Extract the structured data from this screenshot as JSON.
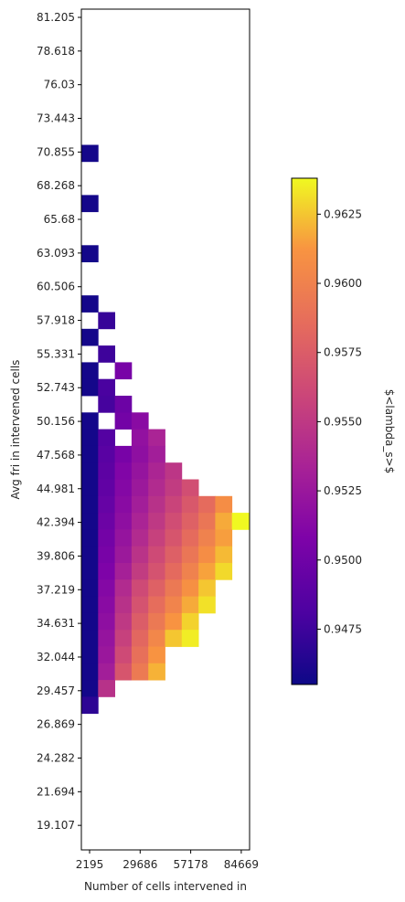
{
  "chart_data": {
    "type": "heatmap",
    "title": "",
    "xlabel": "Number of cells intervened in",
    "ylabel": "Avg fri in intervened cells",
    "colorbar_label": "$<lambda_s>$",
    "colormap": "plasma",
    "x_tick_labels": [
      "2195",
      "29686",
      "57178",
      "84669"
    ],
    "y_tick_labels": [
      "81.205",
      "78.618",
      "76.03",
      "73.443",
      "70.855",
      "68.268",
      "65.68",
      "63.093",
      "60.506",
      "57.918",
      "55.331",
      "52.743",
      "50.156",
      "47.568",
      "44.981",
      "42.394",
      "39.806",
      "37.219",
      "34.631",
      "32.044",
      "29.457",
      "26.869",
      "24.282",
      "21.694",
      "19.107"
    ],
    "colorbar_ticks": [
      "0.9475",
      "0.9500",
      "0.9525",
      "0.9550",
      "0.9575",
      "0.9600",
      "0.9625"
    ],
    "color_range": [
      0.9455,
      0.9638
    ],
    "grid": false,
    "n_cols": 10,
    "n_rows": 43,
    "cells": [
      [
        0,
        4,
        0.9458
      ],
      [
        0,
        7,
        0.9458
      ],
      [
        0,
        10,
        0.9458
      ],
      [
        0,
        13,
        0.9458
      ],
      [
        1,
        14,
        0.9472
      ],
      [
        0,
        15,
        0.9458
      ],
      [
        1,
        16,
        0.9475
      ],
      [
        0,
        17,
        0.9458
      ],
      [
        2,
        17,
        0.9505
      ],
      [
        0,
        18,
        0.9458
      ],
      [
        1,
        18,
        0.948
      ],
      [
        1,
        19,
        0.9478
      ],
      [
        2,
        19,
        0.9498
      ],
      [
        0,
        20,
        0.9458
      ],
      [
        2,
        20,
        0.9502
      ],
      [
        3,
        20,
        0.9515
      ],
      [
        0,
        21,
        0.9458
      ],
      [
        1,
        21,
        0.9485
      ],
      [
        3,
        21,
        0.952
      ],
      [
        4,
        21,
        0.9535
      ],
      [
        0,
        22,
        0.9458
      ],
      [
        1,
        22,
        0.9488
      ],
      [
        2,
        22,
        0.9505
      ],
      [
        3,
        22,
        0.9518
      ],
      [
        4,
        22,
        0.953
      ],
      [
        0,
        23,
        0.9458
      ],
      [
        1,
        23,
        0.949
      ],
      [
        2,
        23,
        0.951
      ],
      [
        3,
        23,
        0.9522
      ],
      [
        4,
        23,
        0.9536
      ],
      [
        5,
        23,
        0.9548
      ],
      [
        0,
        24,
        0.9458
      ],
      [
        1,
        24,
        0.9492
      ],
      [
        2,
        24,
        0.9512
      ],
      [
        3,
        24,
        0.9526
      ],
      [
        4,
        24,
        0.954
      ],
      [
        5,
        24,
        0.9552
      ],
      [
        6,
        24,
        0.9565
      ],
      [
        0,
        25,
        0.9458
      ],
      [
        1,
        25,
        0.9495
      ],
      [
        2,
        25,
        0.9515
      ],
      [
        3,
        25,
        0.953
      ],
      [
        4,
        25,
        0.9545
      ],
      [
        5,
        25,
        0.9558
      ],
      [
        6,
        25,
        0.9572
      ],
      [
        7,
        25,
        0.9585
      ],
      [
        8,
        25,
        0.9608
      ],
      [
        0,
        26,
        0.9458
      ],
      [
        1,
        26,
        0.9498
      ],
      [
        2,
        26,
        0.9518
      ],
      [
        3,
        26,
        0.9535
      ],
      [
        4,
        26,
        0.955
      ],
      [
        5,
        26,
        0.9564
      ],
      [
        6,
        26,
        0.9578
      ],
      [
        7,
        26,
        0.9592
      ],
      [
        8,
        26,
        0.9618
      ],
      [
        9,
        26,
        0.9638
      ],
      [
        0,
        27,
        0.9458
      ],
      [
        1,
        27,
        0.9502
      ],
      [
        2,
        27,
        0.9522
      ],
      [
        3,
        27,
        0.954
      ],
      [
        4,
        27,
        0.9556
      ],
      [
        5,
        27,
        0.957
      ],
      [
        6,
        27,
        0.9585
      ],
      [
        7,
        27,
        0.96
      ],
      [
        8,
        27,
        0.9615
      ],
      [
        0,
        28,
        0.9458
      ],
      [
        1,
        28,
        0.9505
      ],
      [
        2,
        28,
        0.9526
      ],
      [
        3,
        28,
        0.9546
      ],
      [
        4,
        28,
        0.9562
      ],
      [
        5,
        28,
        0.9577
      ],
      [
        6,
        28,
        0.9592
      ],
      [
        7,
        28,
        0.9608
      ],
      [
        8,
        28,
        0.9622
      ],
      [
        0,
        29,
        0.9458
      ],
      [
        1,
        29,
        0.9508
      ],
      [
        2,
        29,
        0.9532
      ],
      [
        3,
        29,
        0.9552
      ],
      [
        4,
        29,
        0.9568
      ],
      [
        5,
        29,
        0.9584
      ],
      [
        6,
        29,
        0.96
      ],
      [
        7,
        29,
        0.9616
      ],
      [
        8,
        29,
        0.963
      ],
      [
        0,
        30,
        0.9458
      ],
      [
        1,
        30,
        0.9512
      ],
      [
        2,
        30,
        0.954
      ],
      [
        3,
        30,
        0.9562
      ],
      [
        4,
        30,
        0.9578
      ],
      [
        5,
        30,
        0.9594
      ],
      [
        6,
        30,
        0.961
      ],
      [
        7,
        30,
        0.9625
      ],
      [
        0,
        31,
        0.9458
      ],
      [
        1,
        31,
        0.9515
      ],
      [
        2,
        31,
        0.9545
      ],
      [
        3,
        31,
        0.9568
      ],
      [
        4,
        31,
        0.9586
      ],
      [
        5,
        31,
        0.9602
      ],
      [
        6,
        31,
        0.9618
      ],
      [
        7,
        31,
        0.9632
      ],
      [
        0,
        32,
        0.9458
      ],
      [
        1,
        32,
        0.9518
      ],
      [
        2,
        32,
        0.955
      ],
      [
        3,
        32,
        0.9575
      ],
      [
        4,
        32,
        0.9594
      ],
      [
        5,
        32,
        0.9612
      ],
      [
        6,
        32,
        0.9628
      ],
      [
        0,
        33,
        0.9458
      ],
      [
        1,
        33,
        0.9522
      ],
      [
        2,
        33,
        0.9556
      ],
      [
        3,
        33,
        0.9582
      ],
      [
        4,
        33,
        0.9604
      ],
      [
        5,
        33,
        0.9625
      ],
      [
        6,
        33,
        0.9635
      ],
      [
        0,
        34,
        0.9458
      ],
      [
        1,
        34,
        0.9525
      ],
      [
        2,
        34,
        0.9562
      ],
      [
        3,
        34,
        0.9588
      ],
      [
        4,
        34,
        0.9612
      ],
      [
        0,
        35,
        0.9458
      ],
      [
        1,
        35,
        0.953
      ],
      [
        2,
        35,
        0.957
      ],
      [
        3,
        35,
        0.9595
      ],
      [
        4,
        35,
        0.962
      ],
      [
        0,
        36,
        0.9458
      ],
      [
        1,
        36,
        0.9545
      ],
      [
        0,
        37,
        0.9468
      ]
    ]
  }
}
